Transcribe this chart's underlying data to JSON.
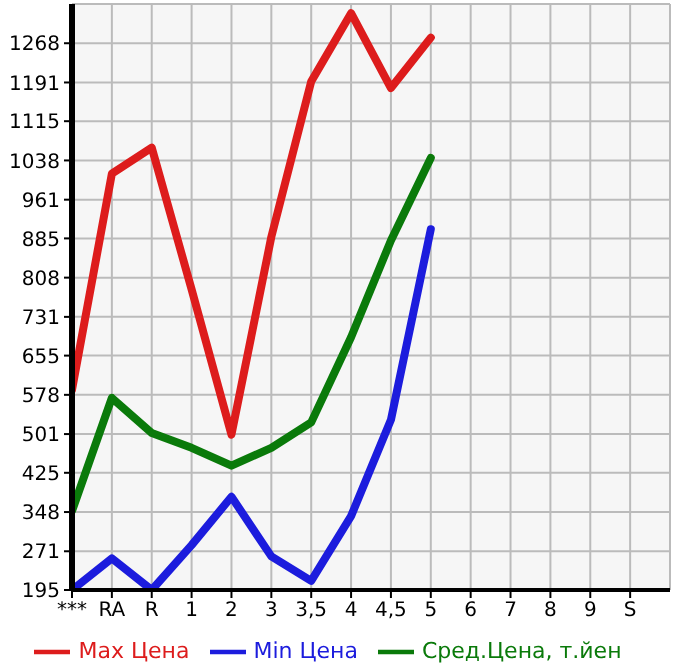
{
  "chart_data": {
    "type": "line",
    "categories": [
      "***",
      "RA",
      "R",
      "1",
      "2",
      "3",
      "3,5",
      "4",
      "4,5",
      "5",
      "6",
      "7",
      "8",
      "9",
      "S"
    ],
    "series": [
      {
        "name": "Max Цена",
        "color": "#dd1c1c",
        "values": [
          588,
          1012,
          1063,
          785,
          500,
          888,
          1193,
          1327,
          1180,
          1279,
          null,
          null,
          null,
          null,
          null
        ]
      },
      {
        "name": "Min Цена",
        "color": "#1c1cdd",
        "values": [
          195,
          257,
          195,
          283,
          378,
          261,
          213,
          340,
          529,
          903,
          null,
          null,
          null,
          null,
          null
        ]
      },
      {
        "name": "Сред.Цена, т.йен",
        "color": "#0a7a0a",
        "values": [
          350,
          572,
          503,
          474,
          439,
          474,
          524,
          691,
          881,
          1043,
          null,
          null,
          null,
          null,
          null
        ]
      }
    ],
    "ylim": [
      195,
      1345
    ],
    "yticks": [
      195,
      271,
      348,
      425,
      501,
      578,
      655,
      731,
      808,
      885,
      961,
      1038,
      1115,
      1191,
      1268
    ],
    "grid": true,
    "legend": "bottom",
    "marker": "none",
    "line_style": "solid"
  }
}
